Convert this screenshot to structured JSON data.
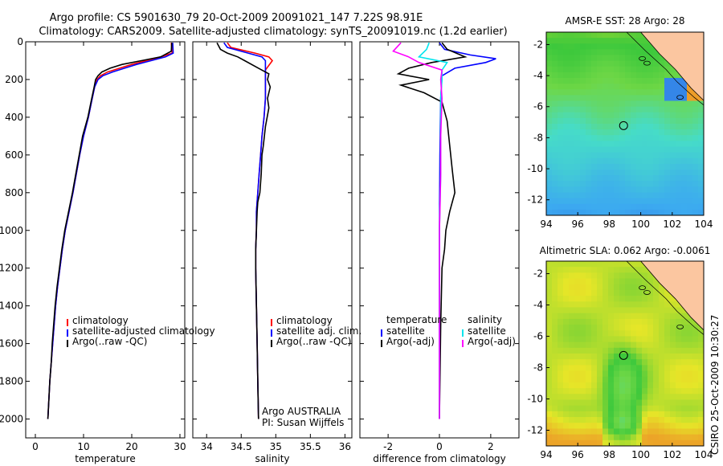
{
  "header": {
    "line1": "Argo profile: CS 5901630_79 20-Oct-2009 20091021_147 7.22S 98.91E",
    "line2": "Climatology: CARS2009. Satellite-adjusted climatology: synTS_20091019.nc (1.2d earlier)"
  },
  "side_label": "CSIRO 25-Oct-2009 10:30:27",
  "colors": {
    "climatology": "#ff0000",
    "satellite": "#0000ff",
    "argo": "#000000",
    "sal_satellite": "#00e5ee",
    "sal_argo": "#ff00ff"
  },
  "chart_data": [
    {
      "type": "line",
      "id": "temperature",
      "xlabel": "temperature",
      "ylabel": "",
      "xlim": [
        -2,
        31
      ],
      "ylim": [
        2100,
        0
      ],
      "xticks": [
        0,
        10,
        20,
        30
      ],
      "yticks": [
        0,
        200,
        400,
        600,
        800,
        1000,
        1200,
        1400,
        1600,
        1800,
        2000
      ],
      "legend": [
        "climatology",
        "satellite-adjusted climatology",
        "Argo(..raw -QC)"
      ],
      "series": [
        {
          "name": "climatology",
          "color": "#ff0000",
          "points": [
            [
              28.2,
              5
            ],
            [
              28.4,
              60
            ],
            [
              26,
              80
            ],
            [
              23,
              100
            ],
            [
              20,
              120
            ],
            [
              17.5,
              140
            ],
            [
              15,
              160
            ],
            [
              13.5,
              180
            ],
            [
              12.8,
              200
            ],
            [
              12.3,
              240
            ],
            [
              11.8,
              300
            ],
            [
              11,
              400
            ],
            [
              10,
              500
            ],
            [
              9.2,
              600
            ],
            [
              8.5,
              700
            ],
            [
              7.8,
              800
            ],
            [
              7,
              900
            ],
            [
              6.2,
              1000
            ],
            [
              5.6,
              1100
            ],
            [
              5.1,
              1200
            ],
            [
              4.6,
              1300
            ],
            [
              4.2,
              1400
            ],
            [
              3.9,
              1500
            ],
            [
              3.6,
              1600
            ],
            [
              3.3,
              1700
            ],
            [
              3.0,
              1800
            ],
            [
              2.8,
              1900
            ],
            [
              2.6,
              2000
            ]
          ]
        },
        {
          "name": "satellite-adjusted climatology",
          "color": "#0000ff",
          "points": [
            [
              28.5,
              5
            ],
            [
              28.6,
              60
            ],
            [
              27,
              80
            ],
            [
              24,
              100
            ],
            [
              21,
              120
            ],
            [
              18.5,
              140
            ],
            [
              16,
              160
            ],
            [
              14,
              180
            ],
            [
              13,
              200
            ],
            [
              12.3,
              240
            ],
            [
              11.8,
              300
            ],
            [
              11,
              400
            ],
            [
              10,
              500
            ],
            [
              9.2,
              600
            ],
            [
              8.5,
              700
            ],
            [
              7.8,
              800
            ],
            [
              7,
              900
            ],
            [
              6.2,
              1000
            ],
            [
              5.6,
              1100
            ],
            [
              5.1,
              1200
            ],
            [
              4.6,
              1300
            ],
            [
              4.2,
              1400
            ],
            [
              3.9,
              1500
            ],
            [
              3.6,
              1600
            ],
            [
              3.3,
              1700
            ],
            [
              3.0,
              1800
            ],
            [
              2.8,
              1900
            ],
            [
              2.6,
              2000
            ]
          ]
        },
        {
          "name": "Argo(..raw -QC)",
          "color": "#000000",
          "points": [
            [
              28.3,
              5
            ],
            [
              28.2,
              50
            ],
            [
              26,
              80
            ],
            [
              22,
              100
            ],
            [
              18,
              120
            ],
            [
              15.5,
              140
            ],
            [
              13.8,
              160
            ],
            [
              13,
              180
            ],
            [
              12.5,
              200
            ],
            [
              12.2,
              240
            ],
            [
              11.7,
              300
            ],
            [
              10.9,
              400
            ],
            [
              9.8,
              500
            ],
            [
              9.1,
              600
            ],
            [
              8.4,
              700
            ],
            [
              7.7,
              800
            ],
            [
              6.9,
              900
            ],
            [
              6.1,
              1000
            ],
            [
              5.5,
              1100
            ],
            [
              5.0,
              1200
            ],
            [
              4.5,
              1300
            ],
            [
              4.1,
              1400
            ],
            [
              3.8,
              1500
            ],
            [
              3.5,
              1600
            ],
            [
              3.3,
              1700
            ],
            [
              3.0,
              1800
            ],
            [
              2.8,
              1900
            ],
            [
              2.6,
              2000
            ]
          ]
        }
      ]
    },
    {
      "type": "line",
      "id": "salinity",
      "xlabel": "salinity",
      "ylabel": "",
      "xlim": [
        33.8,
        36.1
      ],
      "ylim": [
        2100,
        0
      ],
      "xticks": [
        34,
        34.5,
        35,
        35.5,
        36
      ],
      "xtick_labels": [
        "34",
        "34.5",
        "35",
        "35.5",
        "36"
      ],
      "yticks": [
        0,
        200,
        400,
        600,
        800,
        1000,
        1200,
        1400,
        1600,
        1800,
        2000
      ],
      "legend": [
        "climatology",
        "satellite adj. clim.",
        "Argo(..raw -QC)"
      ],
      "annotation": [
        "Argo AUSTRALIA",
        "PI: Susan Wijffels"
      ],
      "series": [
        {
          "name": "climatology",
          "color": "#ff0000",
          "points": [
            [
              34.3,
              5
            ],
            [
              34.35,
              30
            ],
            [
              34.7,
              60
            ],
            [
              34.9,
              80
            ],
            [
              34.95,
              100
            ],
            [
              34.85,
              150
            ],
            [
              34.85,
              200
            ],
            [
              34.85,
              300
            ],
            [
              34.83,
              400
            ],
            [
              34.8,
              500
            ],
            [
              34.78,
              600
            ],
            [
              34.76,
              700
            ],
            [
              34.74,
              800
            ],
            [
              34.72,
              900
            ],
            [
              34.72,
              1000
            ],
            [
              34.71,
              1100
            ],
            [
              34.71,
              1200
            ],
            [
              34.72,
              1400
            ],
            [
              34.73,
              1600
            ],
            [
              34.74,
              1800
            ],
            [
              34.75,
              2000
            ]
          ]
        },
        {
          "name": "satellite adj. clim.",
          "color": "#0000ff",
          "points": [
            [
              34.25,
              5
            ],
            [
              34.3,
              30
            ],
            [
              34.6,
              60
            ],
            [
              34.8,
              80
            ],
            [
              34.85,
              100
            ],
            [
              34.85,
              150
            ],
            [
              34.85,
              200
            ],
            [
              34.85,
              300
            ],
            [
              34.83,
              400
            ],
            [
              34.8,
              500
            ],
            [
              34.78,
              600
            ],
            [
              34.76,
              700
            ],
            [
              34.74,
              800
            ],
            [
              34.72,
              900
            ],
            [
              34.72,
              1000
            ],
            [
              34.71,
              1100
            ],
            [
              34.71,
              1200
            ],
            [
              34.72,
              1400
            ],
            [
              34.73,
              1600
            ],
            [
              34.74,
              1800
            ],
            [
              34.75,
              2000
            ]
          ]
        },
        {
          "name": "Argo(..raw -QC)",
          "color": "#000000",
          "points": [
            [
              34.15,
              5
            ],
            [
              34.2,
              40
            ],
            [
              34.3,
              60
            ],
            [
              34.45,
              80
            ],
            [
              34.55,
              100
            ],
            [
              34.75,
              140
            ],
            [
              34.9,
              170
            ],
            [
              34.88,
              200
            ],
            [
              34.92,
              240
            ],
            [
              34.88,
              300
            ],
            [
              34.9,
              350
            ],
            [
              34.85,
              450
            ],
            [
              34.82,
              550
            ],
            [
              34.8,
              600
            ],
            [
              34.79,
              700
            ],
            [
              34.77,
              800
            ],
            [
              34.74,
              850
            ],
            [
              34.73,
              900
            ],
            [
              34.72,
              1000
            ],
            [
              34.71,
              1100
            ],
            [
              34.71,
              1200
            ],
            [
              34.72,
              1400
            ],
            [
              34.73,
              1600
            ],
            [
              34.74,
              1800
            ],
            [
              34.75,
              2000
            ]
          ]
        }
      ]
    },
    {
      "type": "line",
      "id": "difference",
      "xlabel": "difference from climatology",
      "ylabel": "",
      "xlim": [
        -3.1,
        3.1
      ],
      "ylim": [
        2100,
        0
      ],
      "xticks": [
        -2,
        0,
        2
      ],
      "yticks": [
        0,
        200,
        400,
        600,
        800,
        1000,
        1200,
        1400,
        1600,
        1800,
        2000
      ],
      "legend_temperature": [
        "temperature",
        "satellite",
        "Argo(-adj)"
      ],
      "legend_salinity": [
        "salinity",
        "satellite",
        "Argo(-adj)"
      ],
      "series": [
        {
          "name": "satellite",
          "color": "#0000ff",
          "points": [
            [
              0,
              5
            ],
            [
              0.2,
              40
            ],
            [
              1.2,
              70
            ],
            [
              2.2,
              90
            ],
            [
              1.8,
              110
            ],
            [
              0.6,
              140
            ],
            [
              0.1,
              180
            ],
            [
              0.05,
              300
            ],
            [
              0.02,
              600
            ],
            [
              0,
              1000
            ],
            [
              0,
              1500
            ],
            [
              0,
              2000
            ]
          ]
        },
        {
          "name": "Argo(-adj)",
          "color": "#000000",
          "points": [
            [
              0.1,
              5
            ],
            [
              0.3,
              40
            ],
            [
              1,
              80
            ],
            [
              -0.3,
              110
            ],
            [
              -1.2,
              140
            ],
            [
              -1.6,
              170
            ],
            [
              -0.4,
              200
            ],
            [
              -1.5,
              230
            ],
            [
              -0.6,
              270
            ],
            [
              0.1,
              320
            ],
            [
              0.3,
              420
            ],
            [
              0.4,
              550
            ],
            [
              0.5,
              680
            ],
            [
              0.6,
              800
            ],
            [
              0.4,
              900
            ],
            [
              0.25,
              1000
            ],
            [
              0.2,
              1100
            ],
            [
              0.1,
              1200
            ],
            [
              0.05,
              1500
            ],
            [
              0,
              2000
            ]
          ]
        },
        {
          "name": "satellite",
          "color": "#00e5ee",
          "points": [
            [
              -0.4,
              5
            ],
            [
              -0.5,
              40
            ],
            [
              -0.8,
              80
            ],
            [
              0.3,
              110
            ],
            [
              0.1,
              150
            ],
            [
              0.1,
              200
            ],
            [
              0.05,
              300
            ],
            [
              0.05,
              500
            ],
            [
              0.05,
              700
            ],
            [
              0.02,
              900
            ],
            [
              0,
              1000
            ],
            [
              0,
              1500
            ],
            [
              0,
              2000
            ]
          ]
        },
        {
          "name": "Argo(-adj)",
          "color": "#ff00ff",
          "points": [
            [
              -1.5,
              5
            ],
            [
              -1.8,
              50
            ],
            [
              -1.2,
              80
            ],
            [
              -0.8,
              110
            ],
            [
              0.1,
              150
            ],
            [
              0.05,
              200
            ],
            [
              0.1,
              300
            ],
            [
              0.05,
              500
            ],
            [
              0.05,
              700
            ],
            [
              0.02,
              900
            ],
            [
              0,
              1000
            ],
            [
              0,
              1500
            ],
            [
              0,
              2000
            ]
          ]
        }
      ]
    },
    {
      "type": "heatmap",
      "id": "sst_map",
      "title": "AMSR-E SST: 28 Argo: 28",
      "xlim": [
        94,
        104
      ],
      "ylim": [
        -13,
        -1.2
      ],
      "xticks": [
        94,
        96,
        98,
        100,
        102,
        104
      ],
      "yticks": [
        -2,
        -4,
        -6,
        -8,
        -10,
        -12
      ],
      "argo_marker": [
        98.91,
        -7.22
      ]
    },
    {
      "type": "heatmap",
      "id": "sla_map",
      "title": "Altimetric SLA: 0.062 Argo: -0.0061",
      "xlim": [
        94,
        104
      ],
      "ylim": [
        -13,
        -1.2
      ],
      "xticks": [
        94,
        96,
        98,
        100,
        102,
        104
      ],
      "yticks": [
        -2,
        -4,
        -6,
        -8,
        -10,
        -12
      ],
      "argo_marker": [
        98.91,
        -7.22
      ]
    }
  ]
}
